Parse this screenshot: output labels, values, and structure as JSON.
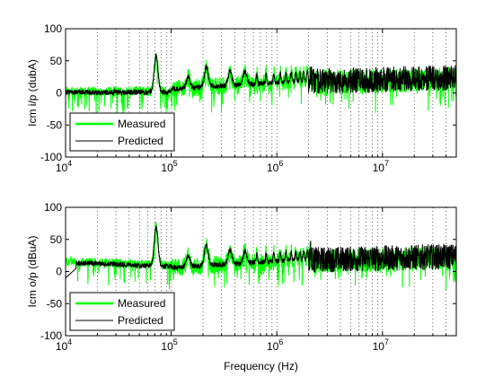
{
  "chart_data": [
    {
      "type": "line",
      "xscale": "log",
      "xlim": [
        10000,
        50000000
      ],
      "ylim": [
        -100,
        100
      ],
      "yticks": [
        -100,
        -50,
        0,
        50,
        100
      ],
      "xticks": [
        {
          "value": 10000,
          "base": "10",
          "exp": "4"
        },
        {
          "value": 100000,
          "base": "10",
          "exp": "5"
        },
        {
          "value": 1000000,
          "base": "10",
          "exp": "6"
        },
        {
          "value": 10000000,
          "base": "10",
          "exp": "7"
        }
      ],
      "ylabel": "Icm i/p (dubA)",
      "xlabel": "",
      "grid": "dotted-vertical",
      "legend": "bottom-left",
      "series": [
        {
          "name": "Measured",
          "color": "#00ff00"
        },
        {
          "name": "Predicted",
          "color": "#000000"
        }
      ],
      "resonance_peaks": [
        {
          "x": 72000,
          "y": 62
        },
        {
          "x": 145000,
          "y": 28
        },
        {
          "x": 215000,
          "y": 45
        },
        {
          "x": 360000,
          "y": 38
        },
        {
          "x": 500000,
          "y": 38
        }
      ]
    },
    {
      "type": "line",
      "xscale": "log",
      "xlim": [
        10000,
        50000000
      ],
      "ylim": [
        -100,
        100
      ],
      "yticks": [
        -100,
        -50,
        0,
        50,
        100
      ],
      "xticks": [
        {
          "value": 10000,
          "base": "10",
          "exp": "4"
        },
        {
          "value": 100000,
          "base": "10",
          "exp": "5"
        },
        {
          "value": 1000000,
          "base": "10",
          "exp": "6"
        },
        {
          "value": 10000000,
          "base": "10",
          "exp": "7"
        }
      ],
      "ylabel": "Icm o/p (dBuA)",
      "xlabel": "Frequency (Hz)",
      "grid": "dotted-vertical",
      "legend": "bottom-left",
      "series": [
        {
          "name": "Measured",
          "color": "#00ff00"
        },
        {
          "name": "Predicted",
          "color": "#000000"
        }
      ],
      "resonance_peaks": [
        {
          "x": 72000,
          "y": 73
        },
        {
          "x": 145000,
          "y": 28
        },
        {
          "x": 215000,
          "y": 45
        },
        {
          "x": 360000,
          "y": 38
        },
        {
          "x": 500000,
          "y": 36
        }
      ]
    }
  ]
}
